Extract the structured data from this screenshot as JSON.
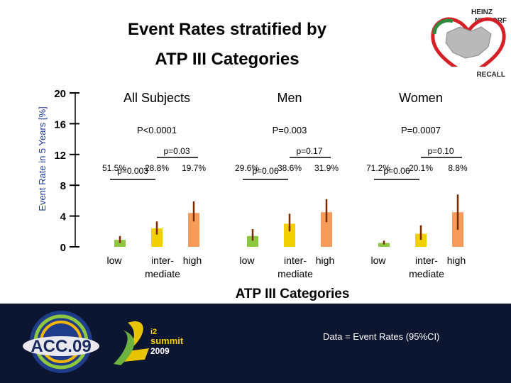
{
  "slide": {
    "title_line1": "Event Rates stratified by",
    "title_line2": "ATP III Categories",
    "footer_note": "Data = Event Rates (95%CI)",
    "logo_text": {
      "top1": "HEINZ",
      "top2": "NIXDORF",
      "bottom": "RECALL"
    },
    "acc_logo_text": "ACC.09",
    "i2_logo_text": {
      "line1": "i2",
      "line2": "summit",
      "line3": "2009"
    }
  },
  "colors": {
    "low": "#8dc63f",
    "intermediate": "#f2d000",
    "high": "#f79b5a",
    "errorbar": "#7a2a00",
    "axis": "#000000",
    "footer_bg": "#0d1630",
    "logo_red": "#d62027",
    "logo_green": "#2e8b3e"
  },
  "chart_data": {
    "type": "bar",
    "ylabel": "Event Rate in 5 Years [%]",
    "xlabel": "ATP III Categories",
    "ylim": [
      0,
      20
    ],
    "yticks": [
      0,
      4,
      8,
      12,
      16,
      20
    ],
    "categories": [
      "low",
      "inter- mediate",
      "high"
    ],
    "panels": [
      {
        "name": "All Subjects",
        "p_overall": "P<0.0001",
        "p_pair_top": "p=0.03",
        "p_pair_low": "p=0.003",
        "distribution": [
          "51.5%",
          "28.8%",
          "19.7%"
        ],
        "values": [
          0.9,
          2.4,
          4.4
        ],
        "ci_low": [
          0.5,
          1.6,
          3.3
        ],
        "ci_high": [
          1.4,
          3.3,
          5.9
        ]
      },
      {
        "name": "Men",
        "p_overall": "P=0.003",
        "p_pair_top": "p=0.17",
        "p_pair_low": "p=0.06",
        "distribution": [
          "29.6%",
          "38.6%",
          "31.9%"
        ],
        "values": [
          1.4,
          3.0,
          4.5
        ],
        "ci_low": [
          0.8,
          2.0,
          3.2
        ],
        "ci_high": [
          2.3,
          4.3,
          6.2
        ]
      },
      {
        "name": "Women",
        "p_overall": "P=0.0007",
        "p_pair_top": "p=0.10",
        "p_pair_low": "p=0.06",
        "distribution": [
          "71.2%",
          "20.1%",
          "8.8%"
        ],
        "values": [
          0.5,
          1.7,
          4.5
        ],
        "ci_low": [
          0.3,
          0.9,
          2.2
        ],
        "ci_high": [
          0.8,
          2.8,
          6.8
        ]
      }
    ]
  }
}
